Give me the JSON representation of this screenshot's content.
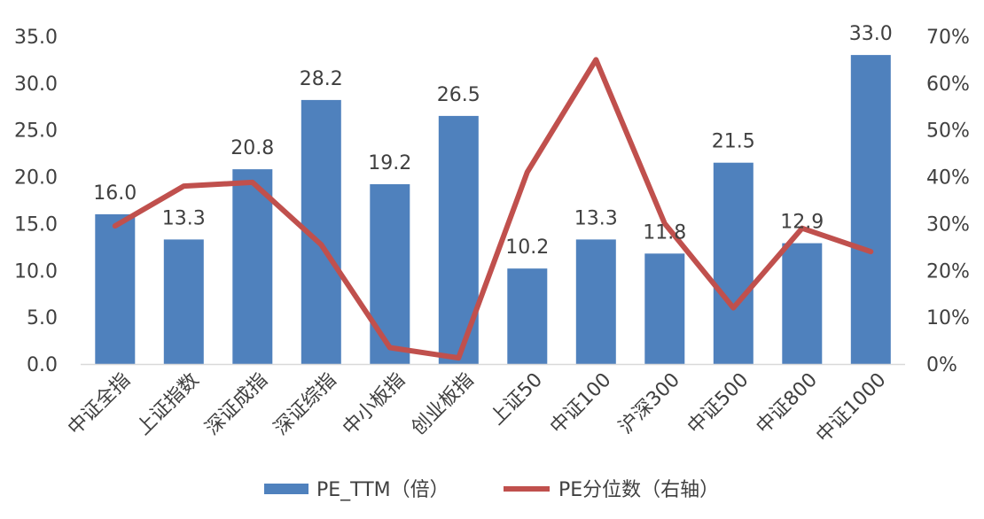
{
  "chart_data": {
    "type": "bar",
    "categories": [
      "中证全指",
      "上证指数",
      "深证成指",
      "深证综指",
      "中小板指",
      "创业板指",
      "上证50",
      "中证100",
      "沪深300",
      "中证500",
      "中证800",
      "中证1000"
    ],
    "series": [
      {
        "name": "PE_TTM（倍）",
        "type": "bar",
        "axis": "left",
        "color": "#4F81BD",
        "values": [
          16.0,
          13.3,
          20.8,
          28.2,
          19.2,
          26.5,
          10.2,
          13.3,
          11.8,
          21.5,
          12.9,
          33.0
        ],
        "value_labels": [
          "16.0",
          "13.3",
          "20.8",
          "28.2",
          "19.2",
          "26.5",
          "10.2",
          "13.3",
          "11.8",
          "21.5",
          "12.9",
          "33.0"
        ]
      },
      {
        "name": "PE分位数（右轴）",
        "type": "line",
        "axis": "right",
        "color": "#C0504D",
        "values": [
          29.5,
          38.0,
          38.8,
          25.5,
          3.5,
          1.3,
          41.0,
          65.0,
          30.0,
          12.0,
          29.0,
          24.0
        ]
      }
    ],
    "y_left": {
      "ylim": [
        0,
        35
      ],
      "ticks": [
        "0.0",
        "5.0",
        "10.0",
        "15.0",
        "20.0",
        "25.0",
        "30.0",
        "35.0"
      ]
    },
    "y_right": {
      "ylim": [
        0,
        70
      ],
      "ticks": [
        "0%",
        "10%",
        "20%",
        "30%",
        "40%",
        "50%",
        "60%",
        "70%"
      ]
    },
    "grid": false,
    "legend": "bottom"
  }
}
